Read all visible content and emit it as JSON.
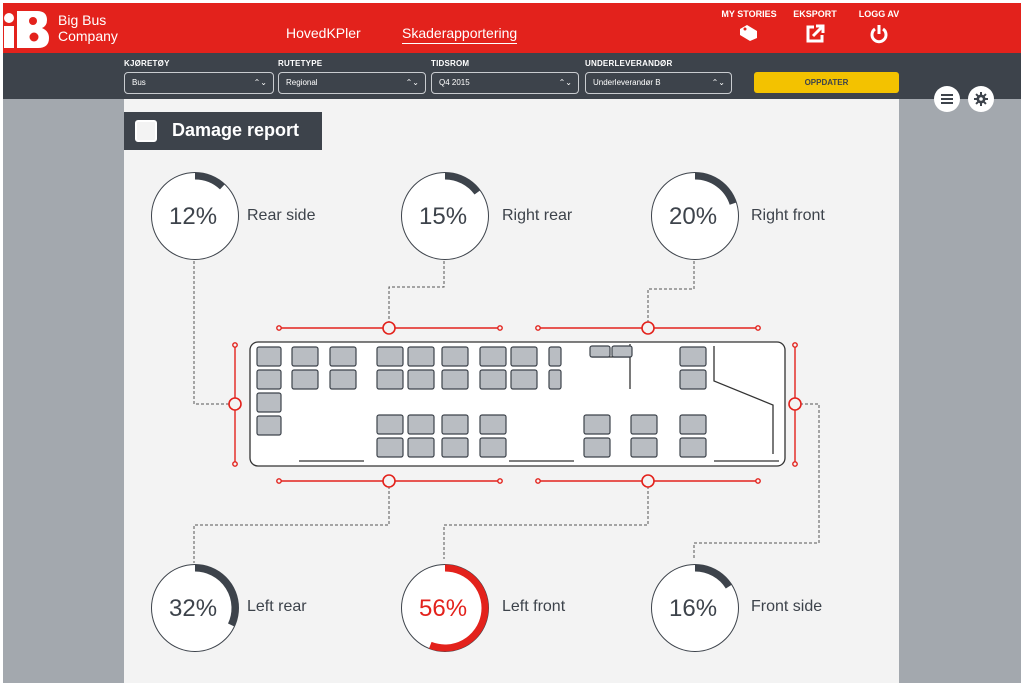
{
  "app": {
    "brand_line1": "Big Bus",
    "brand_line2": "Company",
    "logo_icon": "bus-company-logo-icon"
  },
  "nav": {
    "tabs": [
      {
        "label": "HovedKPler",
        "active": false
      },
      {
        "label": "Skaderapportering",
        "active": true
      }
    ],
    "actions": [
      {
        "label": "MY STORIES",
        "icon": "tag-icon"
      },
      {
        "label": "EKSPORT",
        "icon": "export-icon"
      },
      {
        "label": "LOGG AV",
        "icon": "power-icon"
      }
    ]
  },
  "filters": [
    {
      "label": "KJØRETØY",
      "value": "Bus"
    },
    {
      "label": "RUTETYPE",
      "value": "Regional"
    },
    {
      "label": "TIDSROM",
      "value": "Q4 2015"
    },
    {
      "label": "UNDERLEVERANDØR",
      "value": "Underleverandør B"
    }
  ],
  "update_button": "OPPDATER",
  "side_buttons": [
    {
      "icon": "menu-icon"
    },
    {
      "icon": "gear-icon"
    }
  ],
  "report": {
    "title": "Damage report",
    "stats": [
      {
        "pct": "12%",
        "value": 12,
        "label": "Rear side"
      },
      {
        "pct": "15%",
        "value": 15,
        "label": "Right rear"
      },
      {
        "pct": "20%",
        "value": 20,
        "label": "Right front"
      },
      {
        "pct": "32%",
        "value": 32,
        "label": "Left rear"
      },
      {
        "pct": "56%",
        "value": 56,
        "label": "Left front",
        "highlight": true
      },
      {
        "pct": "16%",
        "value": 16,
        "label": "Front side"
      }
    ]
  },
  "colors": {
    "brand_red": "#e3221c",
    "dark": "#3d434b",
    "accent_yellow": "#f3c200",
    "panel_grey": "#a3a8ae",
    "background": "#f3f3f3"
  }
}
